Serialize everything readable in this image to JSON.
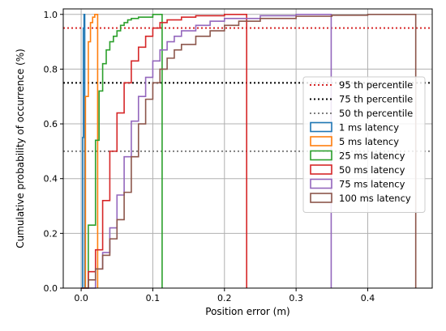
{
  "chart_data": {
    "type": "line",
    "step": true,
    "title": "",
    "xlabel": "Position error (m)",
    "ylabel": "Cumulative probability of occurrence (%)",
    "xlim": [
      -0.025,
      0.49
    ],
    "ylim": [
      0.0,
      1.02
    ],
    "xticks": [
      0.0,
      0.1,
      0.2,
      0.3,
      0.4
    ],
    "xtick_labels": [
      "0.0",
      "0.1",
      "0.2",
      "0.3",
      "0.4"
    ],
    "yticks": [
      0.0,
      0.2,
      0.4,
      0.6,
      0.8,
      1.0
    ],
    "ytick_labels": [
      "0.0",
      "0.2",
      "0.4",
      "0.6",
      "0.8",
      "1.0"
    ],
    "grid": true,
    "legend_position": "center-right",
    "hlines": [
      {
        "name": "95 th percentile",
        "y": 0.95,
        "color": "#d62728",
        "style": "dotted"
      },
      {
        "name": "75 th percentile",
        "y": 0.75,
        "color": "#000000",
        "style": "dotted"
      },
      {
        "name": "50 th percentile",
        "y": 0.5,
        "color": "#7f7f7f",
        "style": "dotted"
      }
    ],
    "series": [
      {
        "name": "1 ms latency",
        "color": "#1f77b4",
        "x": [
          0.0,
          0.002,
          0.003,
          0.004,
          0.005
        ],
        "y": [
          0.0,
          0.55,
          0.95,
          1.0,
          1.0
        ]
      },
      {
        "name": "5 ms latency",
        "color": "#ff7f0e",
        "x": [
          0.0,
          0.006,
          0.01,
          0.013,
          0.016,
          0.019,
          0.021,
          0.023
        ],
        "y": [
          0.0,
          0.7,
          0.9,
          0.97,
          0.99,
          1.0,
          1.0,
          1.0
        ]
      },
      {
        "name": "25 ms latency",
        "color": "#2ca02c",
        "x": [
          0.0,
          0.01,
          0.02,
          0.025,
          0.03,
          0.035,
          0.04,
          0.045,
          0.05,
          0.055,
          0.06,
          0.065,
          0.07,
          0.08,
          0.1,
          0.113
        ],
        "y": [
          0.0,
          0.23,
          0.54,
          0.72,
          0.82,
          0.87,
          0.9,
          0.92,
          0.94,
          0.96,
          0.97,
          0.98,
          0.985,
          0.99,
          1.0,
          1.0
        ]
      },
      {
        "name": "50 ms latency",
        "color": "#d62728",
        "x": [
          0.0,
          0.01,
          0.02,
          0.03,
          0.04,
          0.05,
          0.06,
          0.07,
          0.08,
          0.09,
          0.1,
          0.11,
          0.12,
          0.14,
          0.16,
          0.2,
          0.231
        ],
        "y": [
          0.0,
          0.06,
          0.14,
          0.32,
          0.5,
          0.64,
          0.75,
          0.83,
          0.88,
          0.92,
          0.95,
          0.97,
          0.98,
          0.99,
          0.995,
          1.0,
          1.0
        ]
      },
      {
        "name": "75 ms latency",
        "color": "#9467bd",
        "x": [
          0.0,
          0.02,
          0.03,
          0.04,
          0.05,
          0.06,
          0.07,
          0.08,
          0.09,
          0.1,
          0.11,
          0.12,
          0.13,
          0.14,
          0.16,
          0.18,
          0.2,
          0.25,
          0.3,
          0.349
        ],
        "y": [
          0.0,
          0.07,
          0.13,
          0.22,
          0.34,
          0.48,
          0.61,
          0.7,
          0.77,
          0.83,
          0.87,
          0.9,
          0.92,
          0.94,
          0.96,
          0.975,
          0.985,
          0.995,
          1.0,
          1.0
        ]
      },
      {
        "name": "100 ms latency",
        "color": "#8c564b",
        "x": [
          0.0,
          0.01,
          0.02,
          0.03,
          0.04,
          0.05,
          0.06,
          0.07,
          0.08,
          0.09,
          0.1,
          0.11,
          0.12,
          0.13,
          0.14,
          0.16,
          0.18,
          0.2,
          0.22,
          0.25,
          0.3,
          0.35,
          0.4,
          0.467
        ],
        "y": [
          0.0,
          0.03,
          0.07,
          0.12,
          0.18,
          0.25,
          0.35,
          0.48,
          0.6,
          0.69,
          0.75,
          0.8,
          0.84,
          0.87,
          0.89,
          0.92,
          0.94,
          0.96,
          0.975,
          0.985,
          0.993,
          0.997,
          1.0,
          1.0
        ]
      }
    ]
  }
}
